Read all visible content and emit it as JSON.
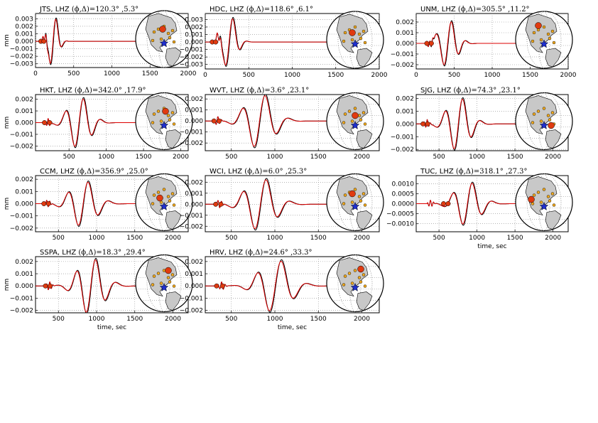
{
  "figure": {
    "ylabel": "mm",
    "xlabel": "time, sec",
    "colors": {
      "data": "#000000",
      "synthetic": "#dd0000",
      "land": "#c8c8c8",
      "ocean": "#ffffff",
      "marker": "#e03a10",
      "station": "#f0a81c",
      "source": "#1f2fd0"
    },
    "icons": [
      "globe-map-icon",
      "star-icon"
    ]
  },
  "chart_data": [
    {
      "type": "line",
      "station": "JTS",
      "title_prefix": "JTS, LHZ ",
      "phi": "120.3°",
      "delta": "5.3°",
      "xlim": [
        0,
        2000
      ],
      "xticks": [
        "0",
        "500",
        "1000",
        "1500",
        "2000"
      ],
      "ylim": [
        -0.0035,
        0.0037
      ],
      "yticks": [
        "0.003",
        "0.002",
        "0.001",
        "0.000",
        "−0.001",
        "−0.002",
        "−0.003"
      ],
      "yvals": [
        0.003,
        0.002,
        0.001,
        0,
        -0.001,
        -0.002,
        -0.003
      ],
      "show_ylabel": true,
      "show_xlabel": false,
      "markers": [
        70,
        110
      ],
      "wave": {
        "t0": 90,
        "t1": 420,
        "peak": 0.0035,
        "mid": 235,
        "w": 90,
        "f": 0.035,
        "ds": 0.9
      }
    },
    {
      "type": "line",
      "station": "HDC",
      "title_prefix": "HDC, LHZ ",
      "phi": "118.6°",
      "delta": "6.1°",
      "xlim": [
        0,
        2000
      ],
      "xticks": [
        "0",
        "500",
        "1000",
        "1500",
        "2000"
      ],
      "ylim": [
        -0.0036,
        0.0038
      ],
      "yticks": [
        "0.003",
        "0.002",
        "0.001",
        "0.000",
        "−0.001",
        "−0.002",
        "−0.003"
      ],
      "yvals": [
        0.003,
        0.002,
        0.001,
        0,
        -0.001,
        -0.002,
        -0.003
      ],
      "show_ylabel": false,
      "show_xlabel": false,
      "markers": [
        80,
        120
      ],
      "wave": {
        "t0": 110,
        "t1": 1100,
        "peak": 0.0036,
        "mid": 280,
        "w": 110,
        "f": 0.03,
        "ds": 1.3
      }
    },
    {
      "type": "line",
      "station": "UNM",
      "title_prefix": "UNM, LHZ ",
      "phi": "305.5°",
      "delta": "11.2°",
      "xlim": [
        0,
        2000
      ],
      "xticks": [
        "0",
        "500",
        "1000",
        "1500",
        "2000"
      ],
      "ylim": [
        -0.0024,
        0.0028
      ],
      "yticks": [
        "0.002",
        "0.001",
        "0.000",
        "−0.001",
        "−0.002"
      ],
      "yvals": [
        0.002,
        0.001,
        0,
        -0.001,
        -0.002
      ],
      "show_ylabel": false,
      "show_xlabel": false,
      "markers": [
        140,
        200
      ],
      "wave": {
        "t0": 150,
        "t1": 1400,
        "peak": 0.0022,
        "mid": 420,
        "w": 160,
        "f": 0.026,
        "ds": 1.2
      }
    },
    {
      "type": "line",
      "station": "HKT",
      "title_prefix": "HKT, LHZ ",
      "phi": "342.0°",
      "delta": "17.9°",
      "xlim": [
        50,
        2100
      ],
      "xticks": [
        "500",
        "1000",
        "1500",
        "2000"
      ],
      "ylim": [
        -0.0024,
        0.0024
      ],
      "yticks": [
        "0.002",
        "0.001",
        "0.000",
        "−0.001",
        "−0.002"
      ],
      "yvals": [
        0.002,
        0.001,
        0,
        -0.001,
        -0.002
      ],
      "show_ylabel": true,
      "show_xlabel": false,
      "markers": [
        170,
        240
      ],
      "wave": {
        "t0": 180,
        "t1": 1600,
        "peak": 0.0022,
        "mid": 640,
        "w": 200,
        "f": 0.022,
        "ds": 1.0
      }
    },
    {
      "type": "line",
      "station": "WVT",
      "title_prefix": "WVT, LHZ ",
      "phi": "3.6°",
      "delta": "23.1°",
      "xlim": [
        200,
        2200
      ],
      "xticks": [
        "500",
        "1000",
        "1500",
        "2000"
      ],
      "ylim": [
        -0.0027,
        0.0024
      ],
      "yticks": [
        "0.002",
        "0.001",
        "0.000",
        "−0.001",
        "−0.002"
      ],
      "yvals": [
        0.002,
        0.001,
        0,
        -0.001,
        -0.002
      ],
      "show_ylabel": false,
      "show_xlabel": false,
      "markers": [
        300,
        360
      ],
      "wave": {
        "t0": 300,
        "t1": 1800,
        "peak": 0.0025,
        "mid": 830,
        "w": 220,
        "f": 0.02,
        "ds": 0.9
      }
    },
    {
      "type": "line",
      "station": "SJG",
      "title_prefix": "SJG, LHZ ",
      "phi": "74.3°",
      "delta": "23.1°",
      "xlim": [
        200,
        2200
      ],
      "xticks": [
        "500",
        "1000",
        "1500",
        "2000"
      ],
      "ylim": [
        -0.0021,
        0.0023
      ],
      "yticks": [
        "0.002",
        "0.001",
        "0.000",
        "−0.001",
        "−0.002"
      ],
      "yvals": [
        0.002,
        0.001,
        0,
        -0.001,
        -0.002
      ],
      "show_ylabel": false,
      "show_xlabel": false,
      "markers": [
        290,
        350
      ],
      "wave": {
        "t0": 300,
        "t1": 1800,
        "peak": 0.0021,
        "mid": 760,
        "w": 200,
        "f": 0.022,
        "ds": 1.1
      }
    },
    {
      "type": "line",
      "station": "CCM",
      "title_prefix": "CCM, LHZ ",
      "phi": "356.9°",
      "delta": "25.0°",
      "xlim": [
        200,
        2200
      ],
      "xticks": [
        "500",
        "1000",
        "1500",
        "2000"
      ],
      "ylim": [
        -0.0023,
        0.0023
      ],
      "yticks": [
        "0.002",
        "0.001",
        "0.000",
        "−0.001",
        "−0.002"
      ],
      "yvals": [
        0.002,
        0.001,
        0,
        -0.001,
        -0.002
      ],
      "show_ylabel": true,
      "show_xlabel": false,
      "markers": [
        310,
        370
      ],
      "wave": {
        "t0": 320,
        "t1": 1900,
        "peak": 0.0019,
        "mid": 830,
        "w": 230,
        "f": 0.02,
        "ds": 0.9
      }
    },
    {
      "type": "line",
      "station": "WCI",
      "title_prefix": "WCI, LHZ ",
      "phi": "6.0°",
      "delta": "25.3°",
      "xlim": [
        200,
        2200
      ],
      "xticks": [
        "500",
        "1000",
        "1500",
        "2000"
      ],
      "ylim": [
        -0.0025,
        0.0026
      ],
      "yticks": [
        "0.002",
        "0.001",
        "0.000",
        "−0.001",
        "−0.002"
      ],
      "yvals": [
        0.002,
        0.001,
        0,
        -0.001,
        -0.002
      ],
      "show_ylabel": false,
      "show_xlabel": false,
      "markers": [
        320,
        380
      ],
      "wave": {
        "t0": 320,
        "t1": 1900,
        "peak": 0.0024,
        "mid": 840,
        "w": 230,
        "f": 0.02,
        "ds": 0.8
      }
    },
    {
      "type": "line",
      "station": "TUC",
      "title_prefix": "TUC, LHZ ",
      "phi": "318.1°",
      "delta": "27.3°",
      "xlim": [
        200,
        2200
      ],
      "xticks": [
        "500",
        "1000",
        "1500",
        "2000"
      ],
      "ylim": [
        -0.0014,
        0.0014
      ],
      "yticks": [
        "0.0010",
        "0.0005",
        "0.0000",
        "−0.0005",
        "−0.0010"
      ],
      "yvals": [
        0.001,
        0.0005,
        0,
        -0.0005,
        -0.001
      ],
      "show_ylabel": false,
      "show_xlabel": true,
      "markers": [
        560,
        620
      ],
      "wave": {
        "t0": 350,
        "t1": 1900,
        "peak": 0.0011,
        "mid": 880,
        "w": 220,
        "f": 0.021,
        "ds": 0.8
      }
    },
    {
      "type": "line",
      "station": "SSPA",
      "title_prefix": "SSPA, LHZ ",
      "phi": "18.3°",
      "delta": "29.4°",
      "xlim": [
        200,
        2200
      ],
      "xticks": [
        "500",
        "1000",
        "1500",
        "2000"
      ],
      "ylim": [
        -0.0022,
        0.0024
      ],
      "yticks": [
        "0.002",
        "0.001",
        "0.000",
        "−0.001",
        "−0.002"
      ],
      "yvals": [
        0.002,
        0.001,
        0,
        -0.001,
        -0.002
      ],
      "show_ylabel": true,
      "show_xlabel": true,
      "markers": [
        330,
        390
      ],
      "wave": {
        "t0": 340,
        "t1": 1900,
        "peak": 0.0023,
        "mid": 930,
        "w": 230,
        "f": 0.02,
        "ds": 1.2
      }
    },
    {
      "type": "line",
      "station": "HRV",
      "title_prefix": "HRV, LHZ ",
      "phi": "24.6°",
      "delta": "33.3°",
      "xlim": [
        200,
        2200
      ],
      "xticks": [
        "500",
        "1000",
        "1500",
        "2000"
      ],
      "ylim": [
        -0.0022,
        0.0024
      ],
      "yticks": [
        "0.002",
        "0.001",
        "0.000",
        "−0.001",
        "−0.002"
      ],
      "yvals": [
        0.002,
        0.001,
        0,
        -0.001,
        -0.002
      ],
      "show_ylabel": false,
      "show_xlabel": true,
      "markers": [
        330,
        400
      ],
      "wave": {
        "t0": 350,
        "t1": 1900,
        "peak": 0.0022,
        "mid": 1010,
        "w": 240,
        "f": 0.019,
        "ds": 0.9
      }
    }
  ]
}
